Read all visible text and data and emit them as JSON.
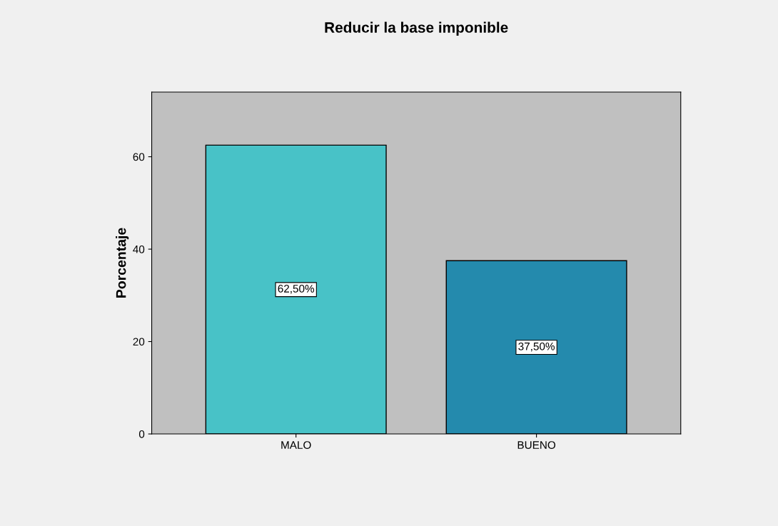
{
  "chart_data": {
    "type": "bar",
    "title": "Reducir la base imponible",
    "ylabel": "Porcentaje",
    "categories": [
      "MALO",
      "BUENO"
    ],
    "values": [
      62.5,
      37.5
    ],
    "colors": [
      "#48c2c7",
      "#248aad"
    ],
    "value_labels": [
      "62,50%",
      "37,50%"
    ],
    "ylim": [
      0,
      74
    ],
    "yticks": [
      0,
      20,
      40,
      60
    ],
    "grid": false,
    "legend": false
  }
}
